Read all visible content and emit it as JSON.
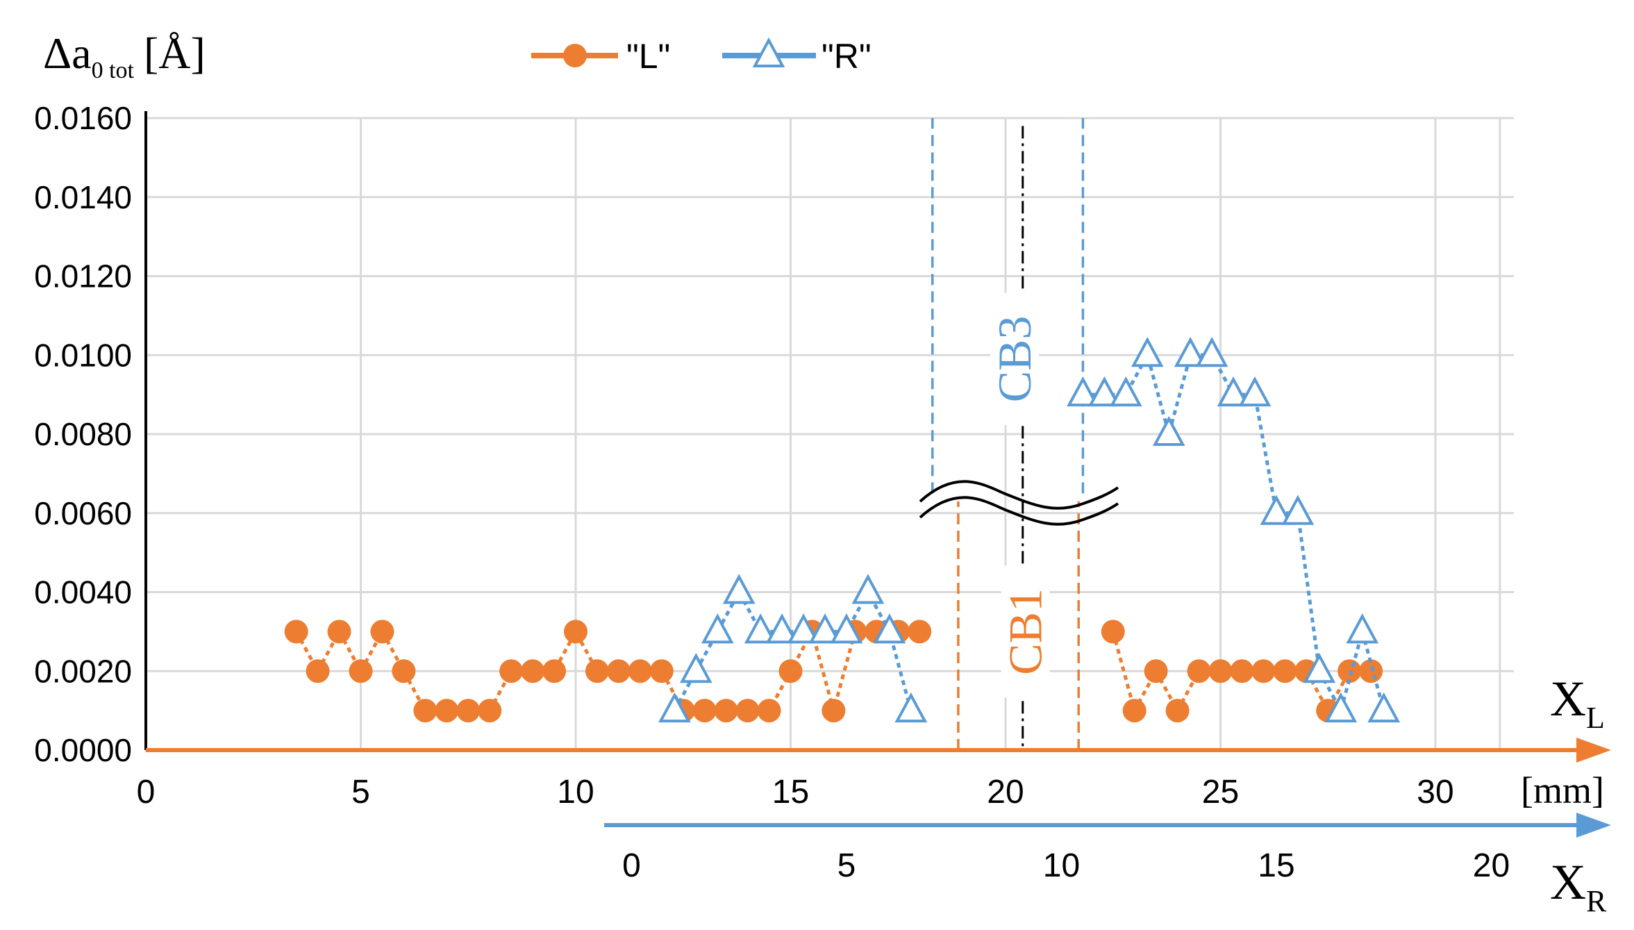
{
  "chart_data": {
    "type": "line",
    "ylabel": "Δa",
    "ylabel_sub": "0 tot",
    "ylabel_unit": "[Å]",
    "ylim": [
      0,
      0.016
    ],
    "y_ticks": [
      "0.0000",
      "0.0020",
      "0.0040",
      "0.0060",
      "0.0080",
      "0.0100",
      "0.0120",
      "0.0140",
      "0.0160"
    ],
    "grid": true,
    "legend_position": "top-center",
    "axes": {
      "xl": {
        "label": "X",
        "sub": "L",
        "unit": "[mm]",
        "range": [
          0,
          31.5
        ],
        "ticks": [
          "0",
          "5",
          "10",
          "15",
          "20",
          "25",
          "30"
        ],
        "color": "#ed7d31"
      },
      "xr": {
        "label": "X",
        "sub": "R",
        "range": [
          -10.5,
          21
        ],
        "ticks": [
          "0",
          "5",
          "10",
          "15",
          "20"
        ],
        "color": "#5b9bd5"
      }
    },
    "series": [
      {
        "name": "\"L\"",
        "color": "#ed7d31",
        "marker": "circle",
        "axis": "xl",
        "segments": [
          [
            [
              3.5,
              0.003
            ],
            [
              4.0,
              0.002
            ],
            [
              4.5,
              0.003
            ],
            [
              5.0,
              0.002
            ],
            [
              5.5,
              0.003
            ],
            [
              6.0,
              0.002
            ],
            [
              6.5,
              0.001
            ],
            [
              7.0,
              0.001
            ],
            [
              7.5,
              0.001
            ],
            [
              8.0,
              0.001
            ],
            [
              8.5,
              0.002
            ],
            [
              9.0,
              0.002
            ],
            [
              9.5,
              0.002
            ],
            [
              10.0,
              0.003
            ],
            [
              10.5,
              0.002
            ],
            [
              11.0,
              0.002
            ],
            [
              11.5,
              0.002
            ],
            [
              12.0,
              0.002
            ],
            [
              12.5,
              0.001
            ],
            [
              13.0,
              0.001
            ],
            [
              13.5,
              0.001
            ],
            [
              14.0,
              0.001
            ],
            [
              14.5,
              0.001
            ],
            [
              15.0,
              0.002
            ],
            [
              15.5,
              0.003
            ],
            [
              16.0,
              0.001
            ],
            [
              16.5,
              0.003
            ],
            [
              17.0,
              0.003
            ],
            [
              17.5,
              0.003
            ],
            [
              18.0,
              0.003
            ]
          ],
          [
            [
              22.5,
              0.003
            ],
            [
              23.0,
              0.001
            ],
            [
              23.5,
              0.002
            ],
            [
              24.0,
              0.001
            ],
            [
              24.5,
              0.002
            ],
            [
              25.0,
              0.002
            ],
            [
              25.5,
              0.002
            ],
            [
              26.0,
              0.002
            ],
            [
              26.5,
              0.002
            ],
            [
              27.0,
              0.002
            ],
            [
              27.5,
              0.001
            ],
            [
              28.0,
              0.002
            ],
            [
              28.5,
              0.002
            ]
          ]
        ]
      },
      {
        "name": "\"R\"",
        "color": "#5b9bd5",
        "marker": "triangle",
        "axis": "xr",
        "segments": [
          [
            [
              1.0,
              0.001
            ],
            [
              1.5,
              0.002
            ],
            [
              2.0,
              0.003
            ],
            [
              2.5,
              0.004
            ],
            [
              3.0,
              0.003
            ],
            [
              3.5,
              0.003
            ],
            [
              4.0,
              0.003
            ],
            [
              4.5,
              0.003
            ],
            [
              5.0,
              0.003
            ],
            [
              5.5,
              0.004
            ],
            [
              6.0,
              0.003
            ],
            [
              6.5,
              0.001
            ]
          ],
          [
            [
              10.5,
              0.009
            ],
            [
              11.0,
              0.009
            ],
            [
              11.5,
              0.009
            ],
            [
              12.0,
              0.01
            ],
            [
              12.5,
              0.008
            ],
            [
              13.0,
              0.01
            ],
            [
              13.5,
              0.01
            ],
            [
              14.0,
              0.009
            ],
            [
              14.5,
              0.009
            ],
            [
              15.0,
              0.006
            ],
            [
              15.5,
              0.006
            ],
            [
              16.0,
              0.002
            ],
            [
              16.5,
              0.001
            ],
            [
              17.0,
              0.003
            ],
            [
              17.5,
              0.001
            ]
          ]
        ]
      }
    ],
    "annotations": [
      {
        "text": "CB1",
        "color": "#ed7d31",
        "x_axis": "xl",
        "bounds": [
          18.9,
          21.7
        ],
        "y_from": 0,
        "y_to": 0.0063,
        "center_y": 0.003
      },
      {
        "text": "CB3",
        "color": "#5b9bd5",
        "x_axis": "xr",
        "bounds": [
          7.0,
          10.5
        ],
        "y_from": 0.0065,
        "y_to": 0.016,
        "center_y": 0.0099
      },
      {
        "x_axis": "xl",
        "center_x": 20.4,
        "style": "dash-dot",
        "color": "#000000"
      }
    ]
  }
}
